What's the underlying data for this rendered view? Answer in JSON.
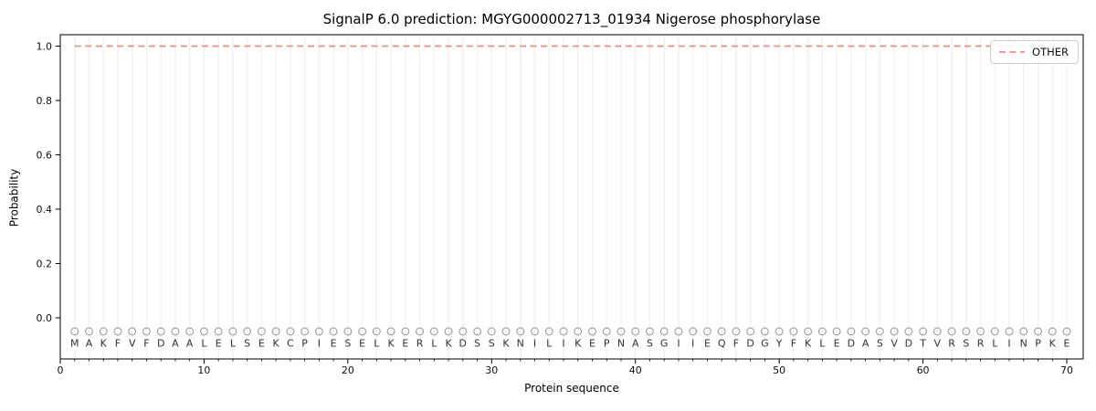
{
  "chart_data": {
    "type": "line",
    "title": "SignalP 6.0 prediction: MGYG000002713_01934 Nigerose phosphorylase",
    "xlabel": "Protein sequence",
    "ylabel": "Probability",
    "xlim": [
      -0.3,
      71.2
    ],
    "ylim": [
      -0.15,
      1.05
    ],
    "x_ticks": [
      "0",
      "10",
      "20",
      "30",
      "40",
      "50",
      "60",
      "70"
    ],
    "x_tick_values": [
      0,
      10,
      20,
      30,
      40,
      50,
      60,
      70
    ],
    "y_ticks": [
      "0.0",
      "0.2",
      "0.4",
      "0.6",
      "0.8",
      "1.0"
    ],
    "y_tick_values": [
      0.0,
      0.2,
      0.4,
      0.6,
      0.8,
      1.0
    ],
    "grid": "vertical gridline at each residue position 1-70",
    "legend_position": "upper right",
    "sequence": "MAKFVFDAALELSEKCPIESELKERLKDSSKNILIKEPNASGIIEQFDGYFKLEDASVDTVRSRLINPKE",
    "sequence_length": 70,
    "series": [
      {
        "name": "OTHER",
        "linestyle": "dashed",
        "color": "#e98c8c",
        "x_start": 1,
        "x_end": 70,
        "constant_value": 1.0
      }
    ],
    "residue_markers": {
      "shape": "open-circle",
      "color": "#9e9e9e",
      "value": -0.05
    }
  },
  "colors": {
    "other_line": "#e98c8c",
    "gridline": "#f2f2f2",
    "marker_stroke": "#9e9e9e",
    "letter": "#333333",
    "axis": "#000000",
    "tick_label": "#111111",
    "legend_border": "#cccccc"
  }
}
